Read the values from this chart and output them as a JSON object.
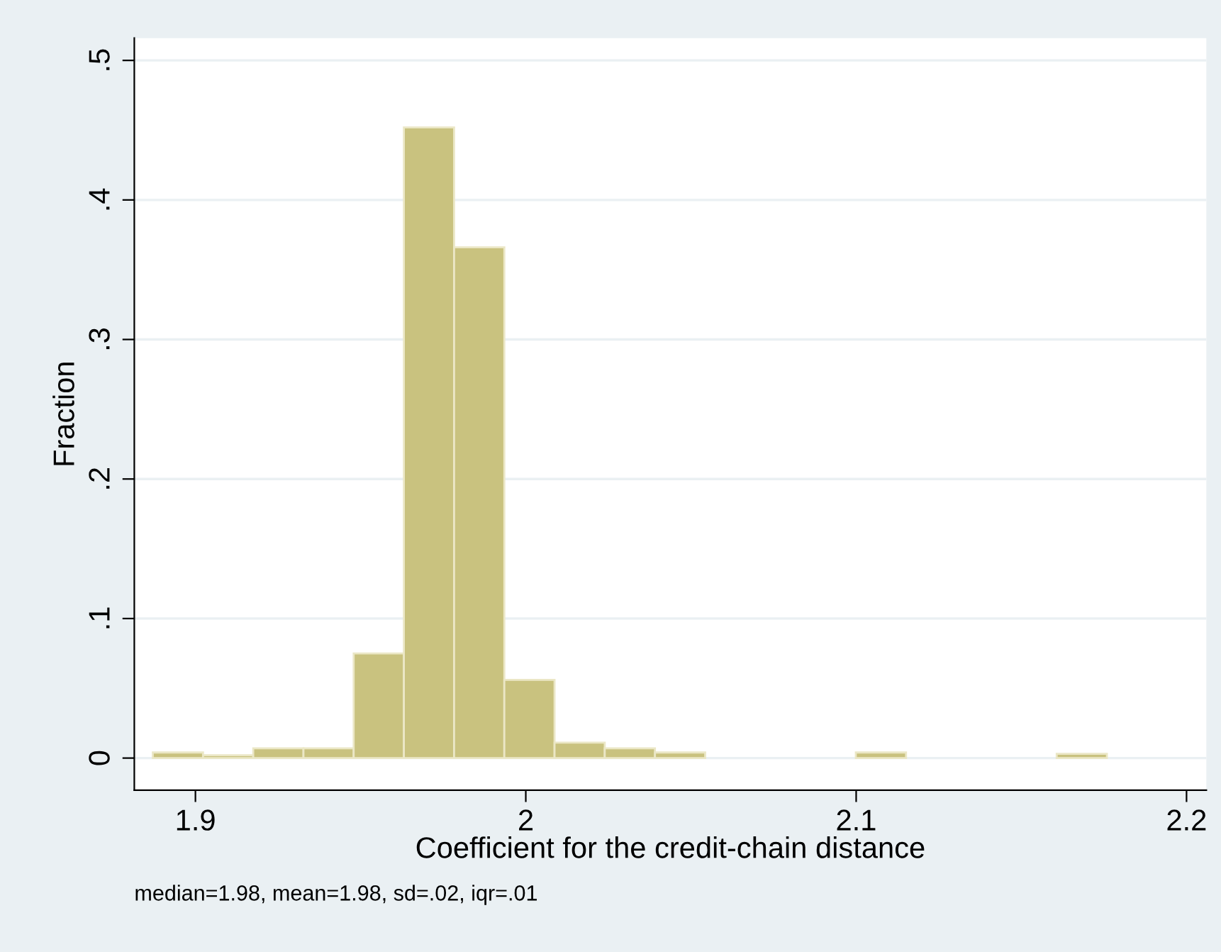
{
  "chart_data": {
    "type": "histogram",
    "xlabel": "Coefficient for the credit-chain distance",
    "ylabel": "Fraction",
    "annotations": [
      "median=1.98, mean=1.98, sd=.02, iqr=.01"
    ],
    "bins": [
      1.8871,
      1.9023,
      1.9175,
      1.9327,
      1.9479,
      1.9631,
      1.9783,
      1.9935,
      2.0087,
      2.0239,
      2.0391,
      2.0543,
      2.0695,
      2.0847,
      2.0999,
      2.1151,
      2.1303,
      2.1455,
      2.1607,
      2.1759
    ],
    "values": [
      0.004,
      0.002,
      0.007,
      0.007,
      0.075,
      0.452,
      0.366,
      0.056,
      0.011,
      0.007,
      0.004,
      0,
      0,
      0,
      0.004,
      0,
      0,
      0,
      0.003
    ],
    "color": "#c9c27f",
    "xlim": [
      1.8815,
      2.206
    ],
    "ylim": [
      -0.023,
      0.516
    ],
    "xticks": [
      1.9,
      2,
      2.1,
      2.2
    ],
    "yticks": [
      {
        "value": 0,
        "label": "0"
      },
      {
        "value": 0.1,
        "label": ".1"
      },
      {
        "value": 0.2,
        "label": ".2"
      },
      {
        "value": 0.3,
        "label": ".3"
      },
      {
        "value": 0.4,
        "label": ".4"
      },
      {
        "value": 0.5,
        "label": ".5"
      }
    ],
    "grid": "y"
  }
}
